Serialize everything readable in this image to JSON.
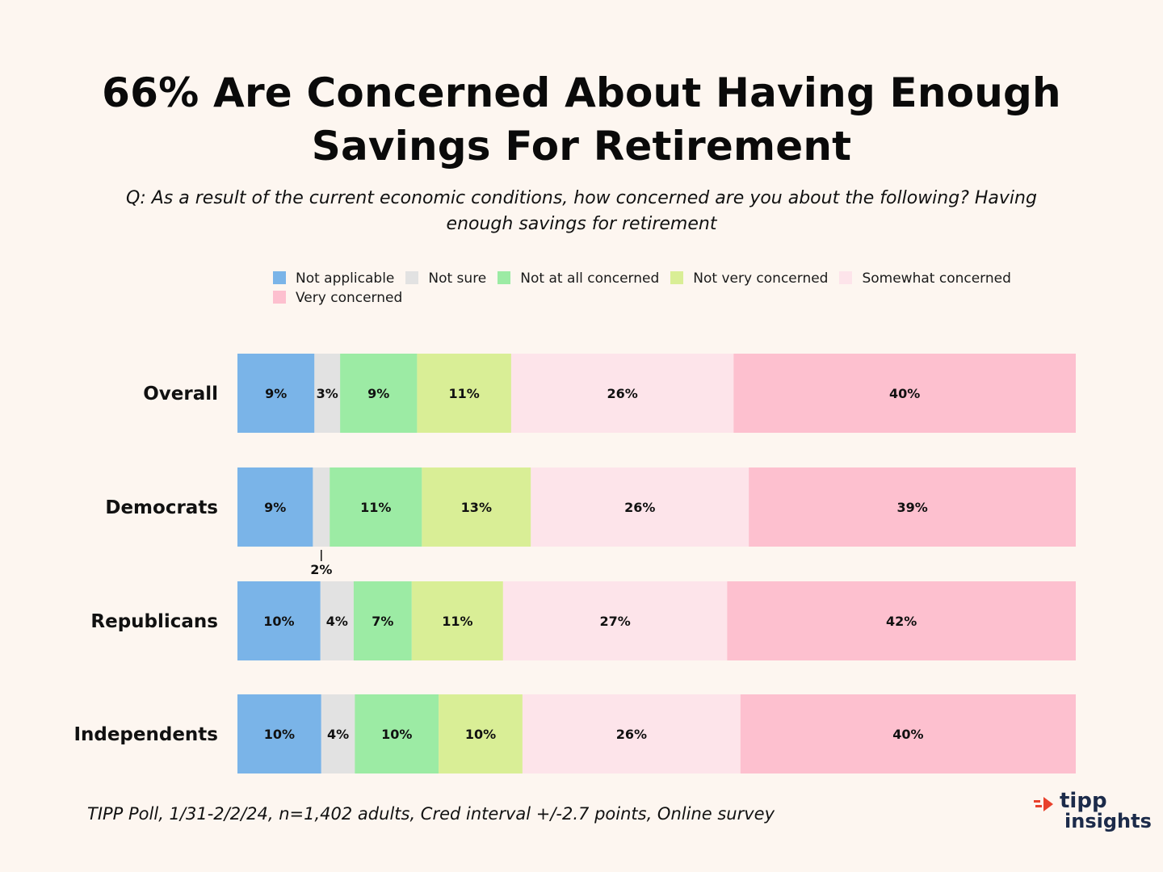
{
  "header": {
    "title_line1": "66% Are Concerned About Having Enough",
    "title_line2": "Savings For Retirement",
    "subtitle_line1": "Q: As a result of the current economic conditions, how concerned are you about the following?  Having",
    "subtitle_line2": "enough savings for retirement"
  },
  "footer": {
    "source": "TIPP Poll, 1/31-2/2/24, n=1,402 adults, Cred interval +/-2.7 points, Online survey"
  },
  "logo": {
    "line1": "tipp",
    "line2": "insights",
    "accent": "#e8412c"
  },
  "chart_data": {
    "type": "bar",
    "orientation": "horizontal",
    "stacked": true,
    "title": "66% Are Concerned About Having Enough Savings For Retirement",
    "xlabel": "",
    "ylabel": "",
    "xlim": [
      0,
      100
    ],
    "legend_position": "top",
    "categories": [
      "Overall",
      "Democrats",
      "Republicans",
      "Independents"
    ],
    "series": [
      {
        "name": "Not applicable",
        "color": "#7ab4e8",
        "values": [
          9,
          9,
          10,
          10
        ],
        "labels": [
          "9%",
          "9%",
          "10%",
          "10%"
        ]
      },
      {
        "name": "Not sure",
        "color": "#e2e2e2",
        "values": [
          3,
          2,
          4,
          4
        ],
        "labels": [
          "3%",
          "2%",
          "4%",
          "4%"
        ]
      },
      {
        "name": "Not at all concerned",
        "color": "#9ceba4",
        "values": [
          9,
          11,
          7,
          10
        ],
        "labels": [
          "9%",
          "11%",
          "7%",
          "10%"
        ]
      },
      {
        "name": "Not very concerned",
        "color": "#d9ee96",
        "values": [
          11,
          13,
          11,
          10
        ],
        "labels": [
          "11%",
          "13%",
          "11%",
          "10%"
        ]
      },
      {
        "name": "Somewhat concerned",
        "color": "#fde4ea",
        "values": [
          26,
          26,
          27,
          26
        ],
        "labels": [
          "26%",
          "26%",
          "27%",
          "26%"
        ]
      },
      {
        "name": "Very concerned",
        "color": "#fdc0cf",
        "values": [
          40,
          39,
          42,
          40
        ],
        "labels": [
          "40%",
          "39%",
          "42%",
          "40%"
        ]
      }
    ]
  }
}
